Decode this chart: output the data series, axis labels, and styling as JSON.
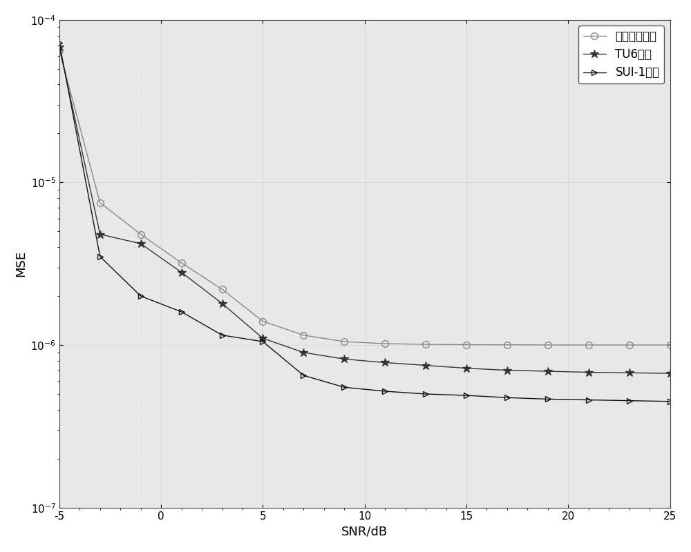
{
  "snr": [
    -5,
    -3,
    -1,
    1,
    3,
    5,
    7,
    9,
    11,
    13,
    15,
    17,
    19,
    21,
    23,
    25
  ],
  "exponential": [
    6.5e-05,
    7.5e-06,
    4.8e-06,
    3.2e-06,
    2.2e-06,
    1.4e-06,
    1.15e-06,
    1.05e-06,
    1.02e-06,
    1.01e-06,
    1.005e-06,
    1.003e-06,
    1.002e-06,
    1.001e-06,
    1.001e-06,
    1.001e-06
  ],
  "tu6": [
    6.8e-05,
    4.8e-06,
    4.2e-06,
    2.8e-06,
    1.8e-06,
    1.1e-06,
    9e-07,
    8.2e-07,
    7.8e-07,
    7.5e-07,
    7.2e-07,
    7e-07,
    6.9e-07,
    6.8e-07,
    6.75e-07,
    6.7e-07
  ],
  "sui1": [
    7.2e-05,
    3.5e-06,
    2e-06,
    1.6e-06,
    1.15e-06,
    1.05e-06,
    6.5e-07,
    5.5e-07,
    5.2e-07,
    5e-07,
    4.9e-07,
    4.75e-07,
    4.65e-07,
    4.6e-07,
    4.55e-07,
    4.5e-07
  ],
  "xlabel": "SNR/dB",
  "ylabel": "MSE",
  "xlim": [
    -5,
    25
  ],
  "ylim": [
    1e-07,
    0.0001
  ],
  "xticks": [
    -5,
    0,
    5,
    10,
    15,
    20,
    25
  ],
  "legend_labels": [
    "指数衰落信道",
    "TU6信道",
    "SUI-1信道"
  ],
  "color_exp": "#888888",
  "color_tu6": "#333333",
  "color_sui1": "#111111",
  "background_color": "#ffffff",
  "plot_background": "#e8e8e8",
  "linewidth": 1.0,
  "markersize_circle": 7,
  "markersize_star": 9,
  "markersize_tri": 6,
  "fontsize_label": 13,
  "fontsize_tick": 11,
  "fontsize_legend": 12
}
